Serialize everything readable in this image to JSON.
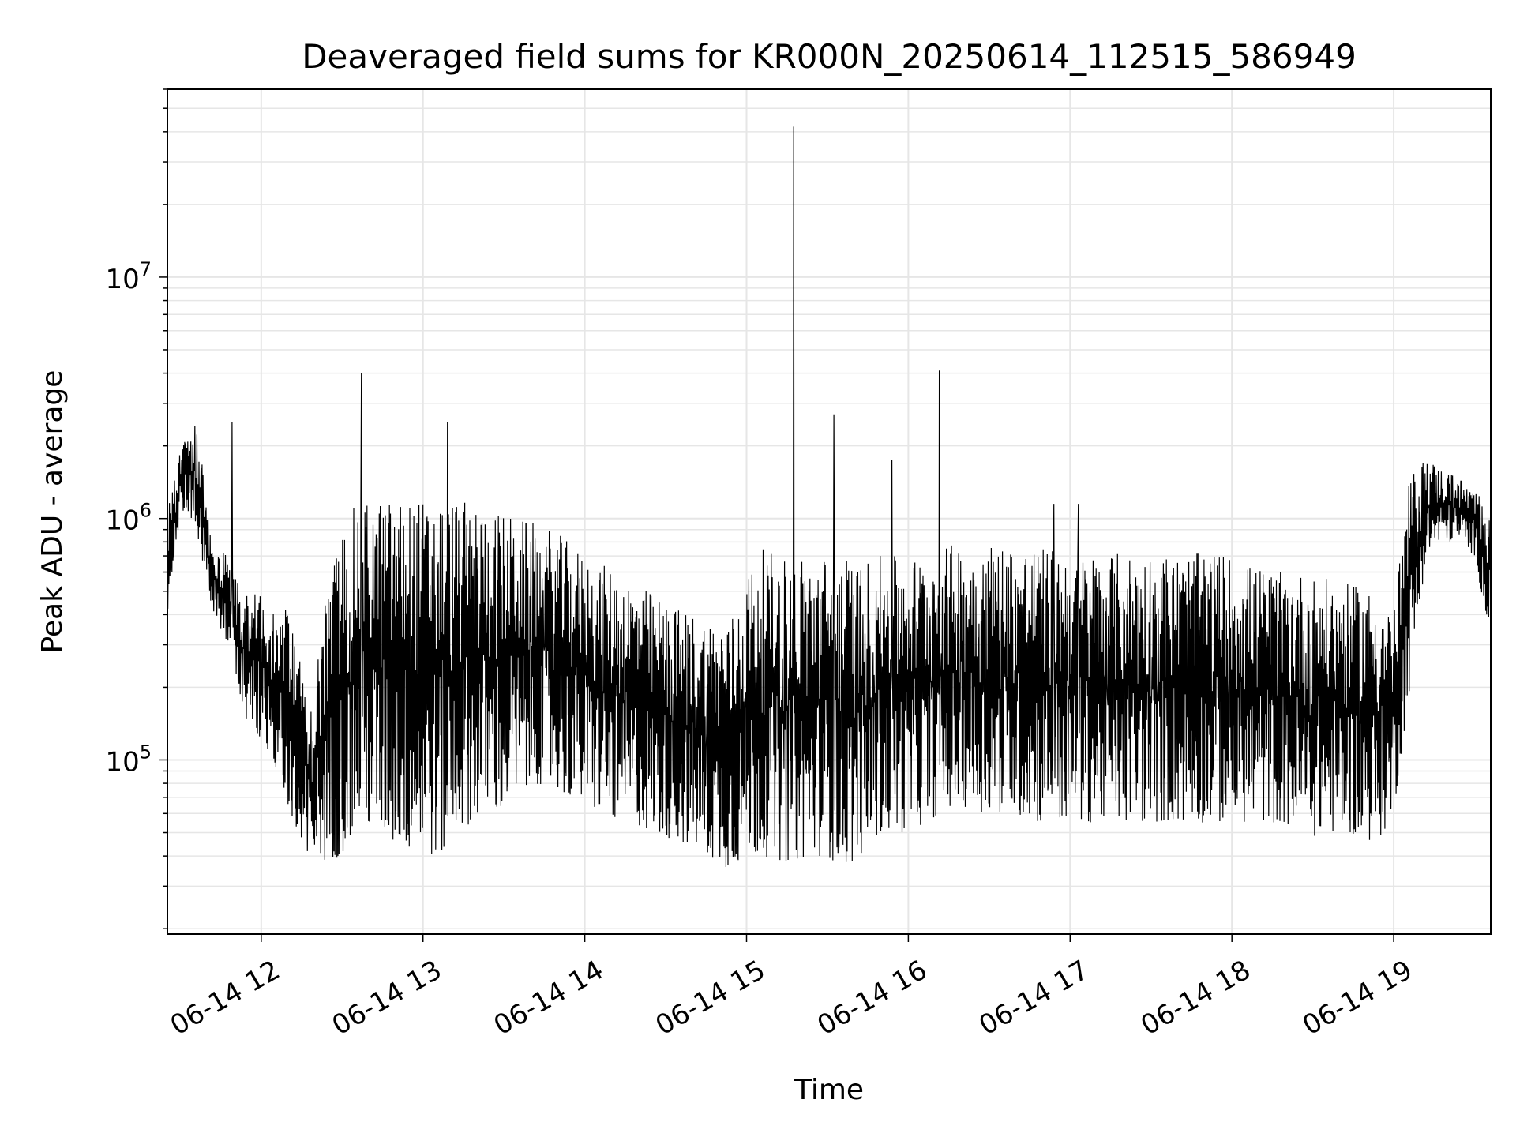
{
  "chart_data": {
    "type": "line",
    "title": "Deaveraged field sums for KR000N_20250614_112515_586949",
    "xlabel": "Time",
    "ylabel": "Peak ADU - average",
    "yscale": "log",
    "ylim": [
      19000,
      60000000
    ],
    "xlim_hours": [
      11.42,
      19.6
    ],
    "grid": true,
    "legend": "none",
    "line_color": "#000000",
    "x_ticks": [
      {
        "label": "06-14 12",
        "hour": 12
      },
      {
        "label": "06-14 13",
        "hour": 13
      },
      {
        "label": "06-14 14",
        "hour": 14
      },
      {
        "label": "06-14 15",
        "hour": 15
      },
      {
        "label": "06-14 16",
        "hour": 16
      },
      {
        "label": "06-14 17",
        "hour": 17
      },
      {
        "label": "06-14 18",
        "hour": 18
      },
      {
        "label": "06-14 19",
        "hour": 19
      }
    ],
    "y_ticks": [
      {
        "base": "10",
        "exp": "5",
        "value": 100000
      },
      {
        "base": "10",
        "exp": "6",
        "value": 1000000
      },
      {
        "base": "10",
        "exp": "7",
        "value": 10000000
      }
    ],
    "series": [
      {
        "x_hours": [
          11.42,
          11.5,
          11.6,
          11.7,
          11.8,
          11.9,
          12.0,
          12.1,
          12.2,
          12.3,
          12.4,
          12.5,
          12.6,
          12.7,
          12.8,
          12.9,
          13.0,
          13.1,
          13.2,
          13.3,
          13.4,
          13.5,
          13.6,
          13.7,
          13.8,
          13.9,
          14.0,
          14.1,
          14.2,
          14.3,
          14.4,
          14.5,
          14.6,
          14.7,
          14.8,
          14.9,
          15.0,
          15.1,
          15.2,
          15.3,
          15.4,
          15.5,
          15.6,
          15.7,
          15.8,
          15.9,
          16.0,
          16.1,
          16.2,
          16.3,
          16.4,
          16.5,
          16.6,
          16.7,
          16.8,
          16.9,
          17.0,
          17.1,
          17.2,
          17.3,
          17.4,
          17.5,
          17.6,
          17.7,
          17.8,
          17.9,
          18.0,
          18.1,
          18.2,
          18.3,
          18.4,
          18.5,
          18.6,
          18.7,
          18.8,
          18.9,
          19.0,
          19.1,
          19.2,
          19.3,
          19.4,
          19.5,
          19.6
        ],
        "low": [
          300000,
          1100000,
          900000,
          400000,
          300000,
          150000,
          120000,
          90000,
          55000,
          40000,
          38000,
          40000,
          55000,
          50000,
          45000,
          42000,
          42000,
          38000,
          50000,
          55000,
          60000,
          60000,
          70000,
          80000,
          75000,
          70000,
          65000,
          60000,
          55000,
          55000,
          50000,
          48000,
          45000,
          42000,
          38000,
          35000,
          40000,
          40000,
          38000,
          38000,
          40000,
          40000,
          35000,
          40000,
          48000,
          50000,
          50000,
          55000,
          60000,
          65000,
          62000,
          60000,
          60000,
          58000,
          55000,
          55000,
          55000,
          55000,
          55000,
          55000,
          55000,
          55000,
          55000,
          55000,
          55000,
          55000,
          55000,
          55000,
          55000,
          55000,
          50000,
          48000,
          50000,
          50000,
          48000,
          45000,
          60000,
          200000,
          700000,
          800000,
          800000,
          700000,
          300000
        ],
        "high": [
          1100000,
          2000000,
          2500000,
          800000,
          700000,
          500000,
          500000,
          450000,
          400000,
          150000,
          500000,
          900000,
          1200000,
          1200000,
          1200000,
          1200000,
          1200000,
          1200000,
          1200000,
          1150000,
          1100000,
          1050000,
          1000000,
          950000,
          900000,
          800000,
          700000,
          650000,
          600000,
          550000,
          500000,
          450000,
          420000,
          400000,
          380000,
          380000,
          600000,
          750000,
          700000,
          700000,
          700000,
          700000,
          700000,
          650000,
          700000,
          700000,
          700000,
          700000,
          750000,
          800000,
          800000,
          800000,
          800000,
          780000,
          760000,
          750000,
          740000,
          720000,
          720000,
          720000,
          720000,
          720000,
          720000,
          700000,
          720000,
          720000,
          700000,
          650000,
          620000,
          600000,
          600000,
          580000,
          560000,
          540000,
          520000,
          500000,
          420000,
          1500000,
          1800000,
          1600000,
          1500000,
          1300000,
          1200000
        ],
        "spikes": [
          {
            "hour": 11.82,
            "value": 2500000
          },
          {
            "hour": 12.62,
            "value": 4000000
          },
          {
            "hour": 13.15,
            "value": 2500000
          },
          {
            "hour": 15.29,
            "value": 42000000
          },
          {
            "hour": 15.54,
            "value": 2700000
          },
          {
            "hour": 15.9,
            "value": 1750000
          },
          {
            "hour": 16.19,
            "value": 4100000
          },
          {
            "hour": 16.9,
            "value": 1150000
          },
          {
            "hour": 17.05,
            "value": 1150000
          }
        ]
      }
    ]
  }
}
